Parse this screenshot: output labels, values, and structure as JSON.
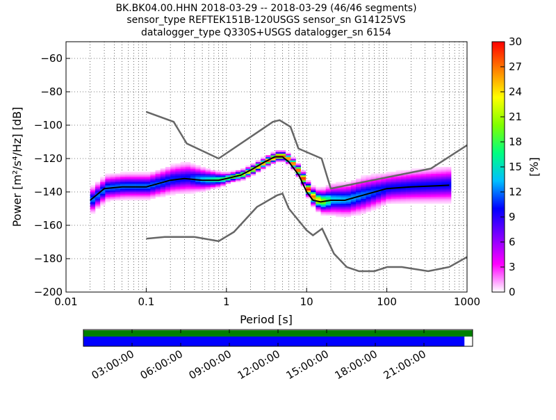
{
  "chart_data": {
    "type": "heatmap",
    "title": [
      "BK.BK04.00.HHN   2018-03-29 -- 2018-03-29  (46/46 segments)",
      "sensor_type REFTEK151B-120USGS sensor_sn G14125VS",
      "datalogger_type Q330S+USGS datalogger_sn 6154"
    ],
    "xlabel": "Period [s]",
    "ylabel": "Power [m²/s⁴/Hz] [dB]",
    "xscale": "log",
    "xlim": [
      0.01,
      1000
    ],
    "ylim": [
      -200,
      -50
    ],
    "xticks": [
      {
        "v": 0.01,
        "label": "0.01"
      },
      {
        "v": 0.1,
        "label": "0.1"
      },
      {
        "v": 1,
        "label": "1"
      },
      {
        "v": 10,
        "label": "10"
      },
      {
        "v": 100,
        "label": "100"
      },
      {
        "v": 1000,
        "label": "1000"
      }
    ],
    "yticks": [
      {
        "v": -60,
        "label": "−60"
      },
      {
        "v": -80,
        "label": "−80"
      },
      {
        "v": -100,
        "label": "−100"
      },
      {
        "v": -120,
        "label": "−120"
      },
      {
        "v": -140,
        "label": "−140"
      },
      {
        "v": -160,
        "label": "−160"
      },
      {
        "v": -180,
        "label": "−180"
      },
      {
        "v": -200,
        "label": "−200"
      }
    ],
    "grid": true,
    "colorbar": {
      "label": "[%]",
      "range": [
        0,
        30
      ],
      "ticks": [
        "0",
        "3",
        "6",
        "9",
        "12",
        "15",
        "18",
        "21",
        "24",
        "27",
        "30"
      ],
      "colors": [
        "#ffffff",
        "#ff00ff",
        "#8000ff",
        "#0000ff",
        "#00c0ff",
        "#00ff80",
        "#80ff00",
        "#ffff00",
        "#ff8000",
        "#ff0000"
      ]
    },
    "series": [
      {
        "name": "high noise model",
        "color": "#666666",
        "points": [
          [
            0.1,
            -92
          ],
          [
            0.22,
            -98
          ],
          [
            0.32,
            -111
          ],
          [
            0.8,
            -120
          ],
          [
            3.8,
            -98
          ],
          [
            4.6,
            -97
          ],
          [
            6.3,
            -101
          ],
          [
            7.9,
            -114
          ],
          [
            15.4,
            -120
          ],
          [
            20,
            -138
          ],
          [
            354,
            -126
          ],
          [
            1000,
            -112
          ]
        ]
      },
      {
        "name": "low noise model",
        "color": "#666666",
        "points": [
          [
            0.1,
            -168
          ],
          [
            0.17,
            -167
          ],
          [
            0.4,
            -167
          ],
          [
            0.8,
            -169.5
          ],
          [
            1.24,
            -164
          ],
          [
            2.4,
            -149
          ],
          [
            4.3,
            -142
          ],
          [
            5,
            -141
          ],
          [
            6,
            -150
          ],
          [
            10,
            -163
          ],
          [
            12,
            -166
          ],
          [
            15.6,
            -162
          ],
          [
            21.9,
            -177
          ],
          [
            31.6,
            -185
          ],
          [
            45,
            -187.5
          ],
          [
            70,
            -187.5
          ],
          [
            101,
            -185
          ],
          [
            154,
            -185
          ],
          [
            328,
            -187.5
          ],
          [
            600,
            -185
          ],
          [
            1000,
            -179
          ]
        ]
      },
      {
        "name": "mean",
        "color": "#000000",
        "points": [
          [
            0.02,
            -145
          ],
          [
            0.03,
            -138
          ],
          [
            0.05,
            -137
          ],
          [
            0.1,
            -137
          ],
          [
            0.2,
            -133
          ],
          [
            0.3,
            -132
          ],
          [
            0.5,
            -133
          ],
          [
            0.8,
            -133
          ],
          [
            1,
            -132
          ],
          [
            1.5,
            -130
          ],
          [
            2,
            -127
          ],
          [
            3,
            -122
          ],
          [
            4,
            -119
          ],
          [
            5,
            -119
          ],
          [
            6,
            -122
          ],
          [
            8,
            -130
          ],
          [
            10,
            -140
          ],
          [
            12,
            -145
          ],
          [
            15,
            -146
          ],
          [
            20,
            -145
          ],
          [
            30,
            -145
          ],
          [
            50,
            -142
          ],
          [
            100,
            -138
          ],
          [
            200,
            -137
          ],
          [
            600,
            -136
          ]
        ]
      }
    ],
    "density_spread_db": [
      [
        0.02,
        5
      ],
      [
        0.1,
        5
      ],
      [
        0.3,
        6
      ],
      [
        1,
        2
      ],
      [
        3,
        2
      ],
      [
        6,
        2
      ],
      [
        10,
        3
      ],
      [
        20,
        6
      ],
      [
        50,
        7
      ],
      [
        100,
        6
      ],
      [
        600,
        7
      ]
    ],
    "density_peak_percent": [
      [
        0.02,
        12
      ],
      [
        0.1,
        12
      ],
      [
        0.3,
        10
      ],
      [
        1,
        20
      ],
      [
        3,
        28
      ],
      [
        6,
        28
      ],
      [
        10,
        30
      ],
      [
        20,
        14
      ],
      [
        50,
        12
      ],
      [
        100,
        10
      ],
      [
        600,
        10
      ]
    ]
  },
  "timeline": {
    "tick_labels": [
      "03:00:00",
      "06:00:00",
      "09:00:00",
      "12:00:00",
      "15:00:00",
      "18:00:00",
      "21:00:00"
    ],
    "coverage_fraction": 1.0,
    "used_fraction": 0.979,
    "colors": {
      "coverage": "#008000",
      "used": "#0000ff"
    }
  }
}
